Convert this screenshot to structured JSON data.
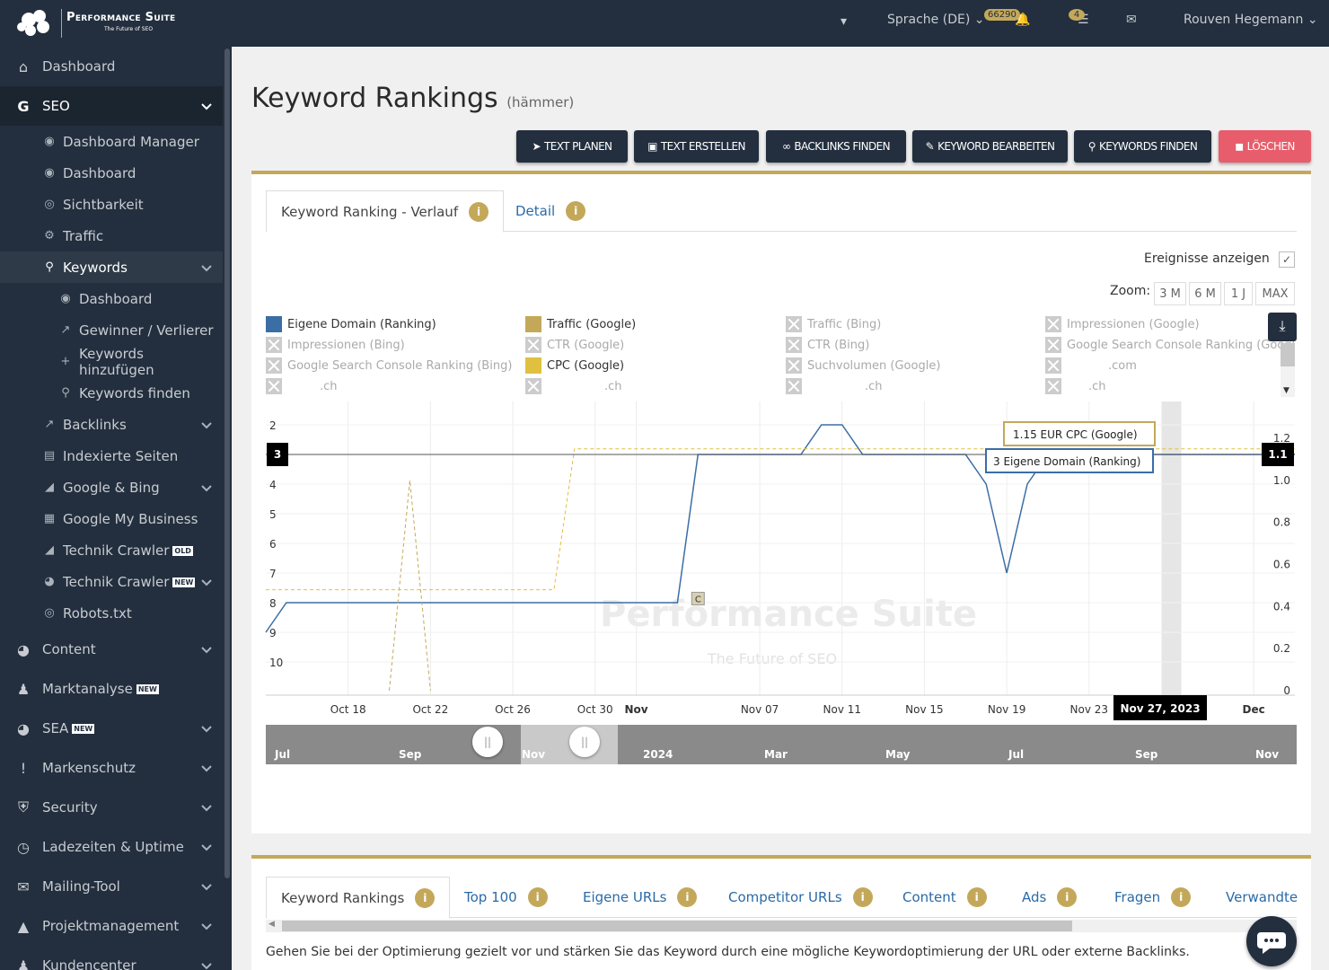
{
  "app": {
    "name": "Performance Suite",
    "tagline": "The Future of SEO"
  },
  "topbar": {
    "language": "Sprache (DE)",
    "notifications_count": "66290",
    "tasks_count": "4",
    "user": "Rouven Hegemann"
  },
  "sidebar": {
    "items": [
      {
        "label": "Dashboard",
        "icon": "home-icon"
      },
      {
        "label": "SEO",
        "icon": "google-icon"
      },
      {
        "label": "Dashboard Manager",
        "icon": "palette-icon"
      },
      {
        "label": "Dashboard",
        "icon": "palette-icon"
      },
      {
        "label": "Sichtbarkeit",
        "icon": "eye-icon"
      },
      {
        "label": "Traffic",
        "icon": "cogs-icon"
      },
      {
        "label": "Keywords",
        "icon": "key-icon"
      },
      {
        "label": "Dashboard",
        "icon": "palette-icon"
      },
      {
        "label": "Gewinner / Verlierer",
        "icon": "external-link-icon"
      },
      {
        "label": "Keywords hinzufügen",
        "icon": "plus-icon"
      },
      {
        "label": "Keywords finden",
        "icon": "search-icon"
      },
      {
        "label": "Backlinks",
        "icon": "external-link-icon"
      },
      {
        "label": "Indexierte Seiten",
        "icon": "file-icon"
      },
      {
        "label": "Google & Bing",
        "icon": "area-chart-icon"
      },
      {
        "label": "Google My Business",
        "icon": "store-icon"
      },
      {
        "label": "Technik Crawler",
        "icon": "area-chart-icon",
        "badge": "OLD"
      },
      {
        "label": "Technik Crawler",
        "icon": "pie-chart-icon",
        "badge": "NEW"
      },
      {
        "label": "Robots.txt",
        "icon": "eye-icon"
      },
      {
        "label": "Content",
        "icon": "pie-chart-icon"
      },
      {
        "label": "Marktanalyse",
        "icon": "users-icon",
        "badge": "NEW"
      },
      {
        "label": "SEA",
        "icon": "pie-chart-icon",
        "badge": "NEW"
      },
      {
        "label": "Markenschutz",
        "icon": "exclamation-icon"
      },
      {
        "label": "Security",
        "icon": "shield-icon"
      },
      {
        "label": "Ladezeiten & Uptime",
        "icon": "clock-icon"
      },
      {
        "label": "Mailing-Tool",
        "icon": "envelope-icon"
      },
      {
        "label": "Projektmanagement",
        "icon": "flask-icon"
      },
      {
        "label": "Kundencenter",
        "icon": "users-icon"
      }
    ]
  },
  "page": {
    "title": "Keyword Rankings",
    "subtitle": "(hämmer)",
    "actions": [
      "TEXT PLANEN",
      "TEXT ERSTELLEN",
      "BACKLINKS FINDEN",
      "KEYWORD BEARBEITEN",
      "KEYWORDS FINDEN",
      "LÖSCHEN"
    ]
  },
  "chart_panel": {
    "tabs": [
      "Keyword Ranking - Verlauf",
      "Detail"
    ],
    "events_label": "Ereignisse anzeigen",
    "zoom_label": "Zoom:",
    "zoom_options": [
      "3 M",
      "6 M",
      "1 J",
      "MAX"
    ],
    "legend": [
      {
        "label": "Eigene Domain (Ranking)",
        "color": "#3b6ea5",
        "on": true
      },
      {
        "label": "Traffic (Google)",
        "color": "#c4a85a",
        "on": true
      },
      {
        "label": "Traffic (Bing)",
        "on": false
      },
      {
        "label": "Impressionen (Google)",
        "on": false
      },
      {
        "label": "Impressionen (Bing)",
        "on": false
      },
      {
        "label": "CTR (Google)",
        "on": false
      },
      {
        "label": "CTR (Bing)",
        "on": false
      },
      {
        "label": "Google Search Console Ranking (Googl",
        "on": false
      },
      {
        "label": "Google Search Console Ranking (Bing)",
        "on": false
      },
      {
        "label": "CPC (Google)",
        "color": "#e0c040",
        "on": true
      },
      {
        "label": "Suchvolumen (Google)",
        "on": false
      },
      {
        "label": ".com",
        "on": false
      },
      {
        "label": ".ch",
        "on": false
      },
      {
        "label": ".ch",
        "on": false
      },
      {
        "label": ".ch",
        "on": false
      },
      {
        "label": ".ch",
        "on": false
      }
    ],
    "tooltip_cpc": "1.15 EUR CPC (Google)",
    "tooltip_rank": "3 Eigene Domain (Ranking)",
    "y_left_flag": "3",
    "y_right_flag": "1.1",
    "x_flag": "Nov 27, 2023",
    "event_marker": "C",
    "watermark_name": "Performance Suite",
    "watermark_tag": "The Future of SEO",
    "navigator_labels": [
      "Jul",
      "Sep",
      "Nov",
      "2024",
      "Mar",
      "May",
      "Jul",
      "Sep",
      "Nov"
    ]
  },
  "chart_data": {
    "type": "line",
    "x": [
      "Oct 18",
      "Oct 22",
      "Oct 26",
      "Oct 30",
      "Nov",
      "Nov 07",
      "Nov 11",
      "Nov 15",
      "Nov 19",
      "Nov 23",
      "Nov 27, 2023",
      "Dec"
    ],
    "y_left_ticks": [
      "2",
      "3",
      "4",
      "5",
      "6",
      "7",
      "8",
      "9",
      "10"
    ],
    "y_right_ticks": [
      "1.2",
      "1.0",
      "0.8",
      "0.6",
      "0.4",
      "0.2",
      "0"
    ],
    "series": [
      {
        "name": "Eigene Domain (Ranking)",
        "axis": "left",
        "color": "#3b6ea5",
        "points": [
          [
            "Oct 14",
            9
          ],
          [
            "Oct 15",
            8
          ],
          [
            "Nov 03",
            8
          ],
          [
            "Nov 04",
            3
          ],
          [
            "Nov 09",
            3
          ],
          [
            "Nov 10",
            2
          ],
          [
            "Nov 11",
            2
          ],
          [
            "Nov 12",
            3
          ],
          [
            "Nov 17",
            3
          ],
          [
            "Nov 18",
            4
          ],
          [
            "Nov 19",
            7
          ],
          [
            "Nov 20",
            4
          ],
          [
            "Nov 21",
            3
          ],
          [
            "Dec 03",
            3
          ]
        ]
      },
      {
        "name": "Traffic (Google)",
        "axis": "right",
        "color": "#c4a85a",
        "points": [
          [
            "Oct 20",
            0
          ],
          [
            "Oct 21",
            1
          ],
          [
            "Oct 22",
            0
          ]
        ]
      },
      {
        "name": "CPC (Google)",
        "axis": "right",
        "color": "#e0c040",
        "points": [
          [
            "Oct 14",
            0.48
          ],
          [
            "Oct 28",
            0.48
          ],
          [
            "Oct 29",
            1.15
          ],
          [
            "Dec 03",
            1.15
          ]
        ]
      }
    ]
  },
  "bottom_panel": {
    "tabs": [
      "Keyword Rankings",
      "Top 100",
      "Eigene URLs",
      "Competitor URLs",
      "Content",
      "Ads",
      "Fragen",
      "Verwandte"
    ],
    "hint": "Gehen Sie bei der Optimierung gezielt vor und stärken Sie das Keyword durch eine mögliche Keywordoptimierung der URL oder externe Backlinks."
  }
}
